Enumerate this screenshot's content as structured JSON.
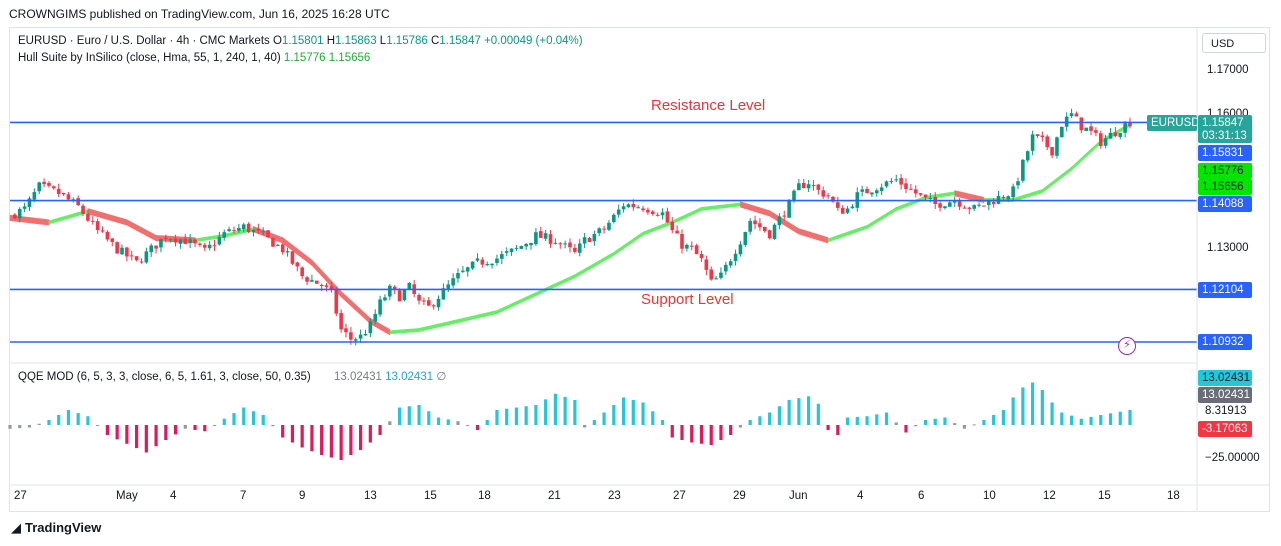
{
  "publisher": "CROWNGIMS published on TradingView.com, Jun 16, 2025 16:28 UTC",
  "legend": {
    "symbol": "EURUSD · Euro / U.S. Dollar · 4h · CMC Markets",
    "o_label": "O",
    "o": "1.15801",
    "h_label": "H",
    "h": "1.15863",
    "l_label": "L",
    "l": "1.15786",
    "c_label": "C",
    "c": "1.15847",
    "change": "+0.00049 (+0.04%)",
    "hull_name": "Hull Suite by InSilico (close, Hma, 55, 1, 240, 1, 40)",
    "hull_v1": "1.15776",
    "hull_v2": "1.15656",
    "qqe_name": "QQE MOD (6, 5, 3, 3, close, 6, 5, 1.61, 3, close, 50, 0.35)",
    "qqe_v1": "13.02431",
    "qqe_v2": "13.02431",
    "qqe_v3": "∅"
  },
  "currency": "USD",
  "price_axis": [
    "1.17000",
    "1.16000",
    "1.13000"
  ],
  "price_tags": {
    "symbol": "EURUSD",
    "last": "1.15847",
    "countdown": "03:31:13",
    "resistance": "1.15831",
    "hull1": "1.15776",
    "hull2": "1.15656",
    "level2": "1.14088",
    "support": "1.12104",
    "level4": "1.10932"
  },
  "annotations": {
    "resistance": "Resistance Level",
    "support": "Support Level"
  },
  "qqe_tags": {
    "a": "13.02431",
    "b": "13.02431",
    "c": "8.31913",
    "d": "-3.17063",
    "axis_low": "−25.00000"
  },
  "x_labels": [
    "27",
    "May",
    "4",
    "7",
    "9",
    "13",
    "15",
    "18",
    "21",
    "23",
    "27",
    "29",
    "Jun",
    "4",
    "6",
    "10",
    "12",
    "15",
    "18"
  ],
  "footer": "TradingView",
  "colors": {
    "up": "#089981",
    "down": "#f23645",
    "hull_up": "#66ee66",
    "hull_down": "#f07070",
    "level": "#2962ff",
    "qqe_up": "#26c6da",
    "qqe_down": "#e0195b",
    "qqe_neutral": "#9598a1"
  },
  "chart_data": {
    "type": "candlestick",
    "ylim": [
      1.1075,
      1.1745
    ],
    "horizontal_levels": [
      1.15831,
      1.14088,
      1.12104,
      1.10932
    ],
    "close_path": [
      [
        0,
        1.1375
      ],
      [
        3,
        1.139
      ],
      [
        6,
        1.144
      ],
      [
        10,
        1.1425
      ],
      [
        14,
        1.1395
      ],
      [
        18,
        1.134
      ],
      [
        22,
        1.13
      ],
      [
        26,
        1.127
      ],
      [
        28,
        1.129
      ],
      [
        32,
        1.133
      ],
      [
        36,
        1.132
      ],
      [
        40,
        1.1295
      ],
      [
        44,
        1.1335
      ],
      [
        48,
        1.135
      ],
      [
        52,
        1.133
      ],
      [
        56,
        1.13
      ],
      [
        60,
        1.124
      ],
      [
        64,
        1.122
      ],
      [
        66,
        1.12
      ],
      [
        68,
        1.112
      ],
      [
        70,
        1.11
      ],
      [
        72,
        1.1105
      ],
      [
        74,
        1.113
      ],
      [
        76,
        1.118
      ],
      [
        78,
        1.121
      ],
      [
        80,
        1.1195
      ],
      [
        82,
        1.1215
      ],
      [
        84,
        1.118
      ],
      [
        86,
        1.117
      ],
      [
        88,
        1.1195
      ],
      [
        92,
        1.124
      ],
      [
        96,
        1.127
      ],
      [
        100,
        1.128
      ],
      [
        104,
        1.13
      ],
      [
        108,
        1.133
      ],
      [
        112,
        1.132
      ],
      [
        116,
        1.129
      ],
      [
        118,
        1.132
      ],
      [
        122,
        1.1345
      ],
      [
        126,
        1.14
      ],
      [
        130,
        1.1395
      ],
      [
        134,
        1.138
      ],
      [
        136,
        1.134
      ],
      [
        138,
        1.131
      ],
      [
        140,
        1.13
      ],
      [
        142,
        1.1275
      ],
      [
        144,
        1.1225
      ],
      [
        146,
        1.124
      ],
      [
        148,
        1.128
      ],
      [
        150,
        1.132
      ],
      [
        152,
        1.1365
      ],
      [
        156,
        1.1335
      ],
      [
        160,
        1.14
      ],
      [
        162,
        1.144
      ],
      [
        164,
        1.145
      ],
      [
        166,
        1.143
      ],
      [
        168,
        1.142
      ],
      [
        170,
        1.1385
      ],
      [
        172,
        1.139
      ],
      [
        174,
        1.142
      ],
      [
        178,
        1.144
      ],
      [
        182,
        1.1455
      ],
      [
        186,
        1.1425
      ],
      [
        188,
        1.141
      ],
      [
        190,
        1.14
      ],
      [
        194,
        1.141
      ],
      [
        198,
        1.139
      ],
      [
        202,
        1.141
      ],
      [
        206,
        1.143
      ],
      [
        210,
        1.155
      ],
      [
        212,
        1.154
      ],
      [
        214,
        1.152
      ],
      [
        216,
        1.158
      ],
      [
        218,
        1.16
      ],
      [
        220,
        1.1575
      ],
      [
        222,
        1.156
      ],
      [
        224,
        1.154
      ],
      [
        226,
        1.1555
      ],
      [
        228,
        1.157
      ],
      [
        230,
        1.1585
      ]
    ],
    "hull_path": [
      [
        0,
        1.137
      ],
      [
        8,
        1.136
      ],
      [
        16,
        1.1385
      ],
      [
        24,
        1.136
      ],
      [
        30,
        1.1325
      ],
      [
        38,
        1.132
      ],
      [
        44,
        1.133
      ],
      [
        50,
        1.1345
      ],
      [
        56,
        1.132
      ],
      [
        62,
        1.127
      ],
      [
        68,
        1.12
      ],
      [
        74,
        1.114
      ],
      [
        78,
        1.1115
      ],
      [
        84,
        1.112
      ],
      [
        92,
        1.114
      ],
      [
        100,
        1.116
      ],
      [
        108,
        1.12
      ],
      [
        116,
        1.124
      ],
      [
        124,
        1.129
      ],
      [
        130,
        1.1335
      ],
      [
        136,
        1.136
      ],
      [
        142,
        1.139
      ],
      [
        150,
        1.14
      ],
      [
        156,
        1.138
      ],
      [
        162,
        1.134
      ],
      [
        168,
        1.132
      ],
      [
        176,
        1.135
      ],
      [
        182,
        1.139
      ],
      [
        188,
        1.1415
      ],
      [
        194,
        1.1425
      ],
      [
        200,
        1.141
      ],
      [
        206,
        1.141
      ],
      [
        212,
        1.143
      ],
      [
        218,
        1.148
      ],
      [
        224,
        1.154
      ],
      [
        230,
        1.1578
      ]
    ],
    "qqe_histogram": [
      [
        0,
        -3
      ],
      [
        4,
        -2
      ],
      [
        8,
        4
      ],
      [
        12,
        12
      ],
      [
        16,
        7
      ],
      [
        20,
        -8
      ],
      [
        24,
        -15
      ],
      [
        28,
        -22
      ],
      [
        32,
        -12
      ],
      [
        36,
        -3
      ],
      [
        40,
        -5
      ],
      [
        44,
        5
      ],
      [
        48,
        14
      ],
      [
        52,
        8
      ],
      [
        56,
        -10
      ],
      [
        60,
        -18
      ],
      [
        64,
        -24
      ],
      [
        68,
        -28
      ],
      [
        72,
        -20
      ],
      [
        76,
        -8
      ],
      [
        80,
        14
      ],
      [
        84,
        16
      ],
      [
        88,
        6
      ],
      [
        92,
        3
      ],
      [
        96,
        -4
      ],
      [
        100,
        12
      ],
      [
        104,
        14
      ],
      [
        108,
        16
      ],
      [
        112,
        25
      ],
      [
        116,
        20
      ],
      [
        118,
        -2
      ],
      [
        122,
        10
      ],
      [
        126,
        22
      ],
      [
        130,
        18
      ],
      [
        134,
        4
      ],
      [
        136,
        -10
      ],
      [
        140,
        -14
      ],
      [
        144,
        -16
      ],
      [
        148,
        -8
      ],
      [
        152,
        4
      ],
      [
        156,
        10
      ],
      [
        160,
        20
      ],
      [
        164,
        23
      ],
      [
        166,
        17
      ],
      [
        168,
        -4
      ],
      [
        170,
        -8
      ],
      [
        172,
        6
      ],
      [
        176,
        7
      ],
      [
        180,
        10
      ],
      [
        184,
        -6
      ],
      [
        188,
        4
      ],
      [
        192,
        6
      ],
      [
        196,
        -3
      ],
      [
        200,
        4
      ],
      [
        204,
        12
      ],
      [
        206,
        22
      ],
      [
        208,
        30
      ],
      [
        210,
        34
      ],
      [
        212,
        28
      ],
      [
        214,
        18
      ],
      [
        216,
        10
      ],
      [
        220,
        5
      ],
      [
        224,
        8
      ],
      [
        230,
        12
      ]
    ]
  }
}
